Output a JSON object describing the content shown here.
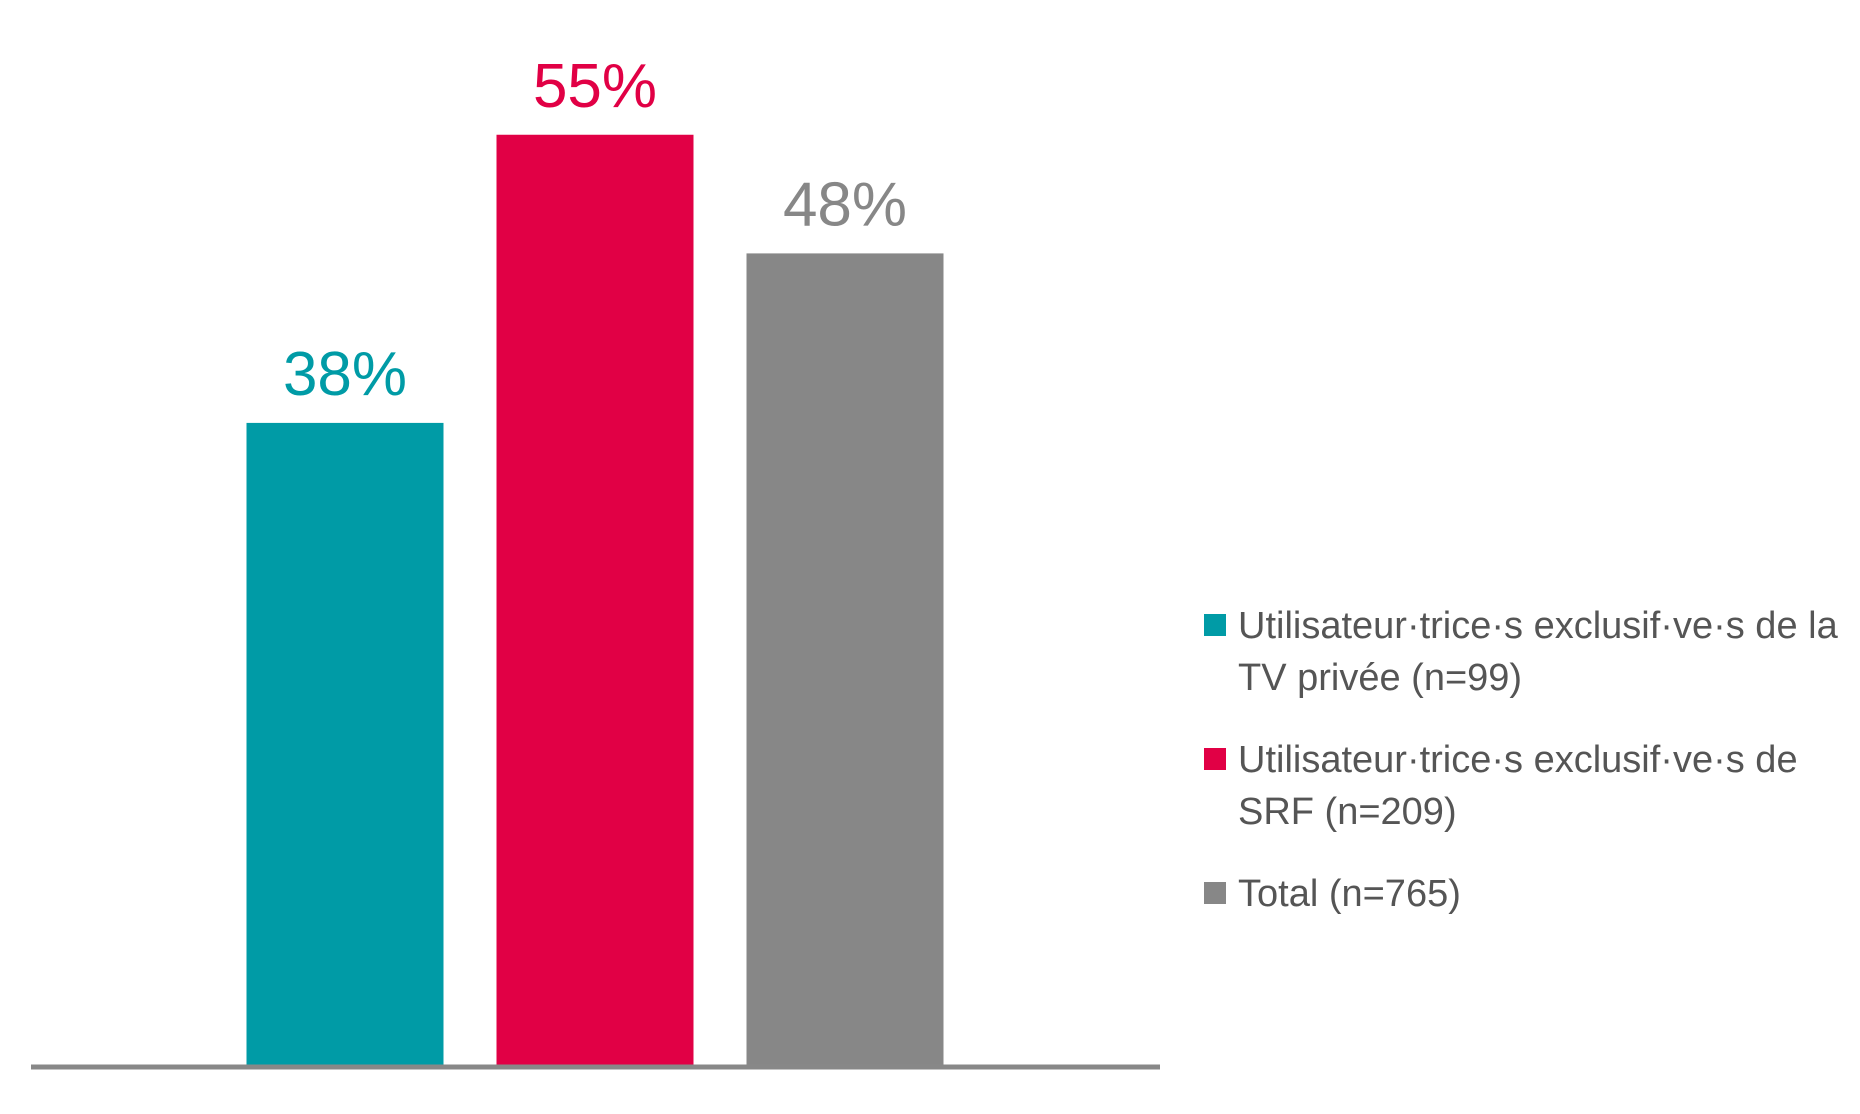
{
  "chart_data": {
    "type": "bar",
    "categories": [
      null
    ],
    "ylim": [
      0,
      60
    ],
    "series": [
      {
        "name": "Utilisateur·trice·s exclusif·ve·s de la TV privée (n=99)",
        "color": "#009ba6",
        "values": [
          38
        ],
        "value_labels": [
          "38%"
        ]
      },
      {
        "name": "Utilisateur·trice·s exclusif·ve·s de SRF (n=209)",
        "color": "#e10045",
        "values": [
          55
        ],
        "value_labels": [
          "55%"
        ]
      },
      {
        "name": "Total (n=765)",
        "color": "#878787",
        "values": [
          48
        ],
        "value_labels": [
          "48%"
        ]
      }
    ],
    "legend": "right"
  }
}
